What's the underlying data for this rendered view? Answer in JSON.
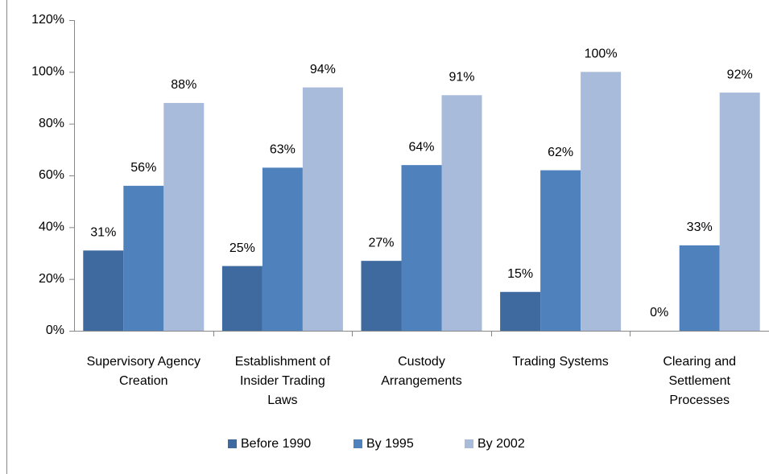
{
  "chart_data": {
    "type": "bar",
    "categories": [
      "Supervisory Agency\nCreation",
      "Establishment of\nInsider Trading\nLaws",
      "Custody\nArrangements",
      "Trading Systems",
      "Clearing and\nSettlement\nProcesses"
    ],
    "series": [
      {
        "name": "Before 1990",
        "color": "#3f6a9f",
        "values": [
          31,
          25,
          27,
          15,
          0
        ],
        "value_labels": [
          "31%",
          "25%",
          "27%",
          "15%",
          "0%"
        ]
      },
      {
        "name": "By 1995",
        "color": "#4f81bd",
        "values": [
          56,
          63,
          64,
          62,
          33
        ],
        "value_labels": [
          "56%",
          "63%",
          "64%",
          "62%",
          "33%"
        ]
      },
      {
        "name": "By 2002",
        "color": "#a9bbdb",
        "values": [
          88,
          94,
          91,
          100,
          92
        ],
        "value_labels": [
          "88%",
          "94%",
          "91%",
          "100%",
          "92%"
        ]
      }
    ],
    "ylim": [
      0,
      120
    ],
    "yticks": [
      {
        "value": 0,
        "label": "0%"
      },
      {
        "value": 20,
        "label": "20%"
      },
      {
        "value": 40,
        "label": "40%"
      },
      {
        "value": 60,
        "label": "60%"
      },
      {
        "value": 80,
        "label": "80%"
      },
      {
        "value": 100,
        "label": "100%"
      },
      {
        "value": 120,
        "label": "120%"
      }
    ],
    "grid": false,
    "legend": "bottom"
  }
}
